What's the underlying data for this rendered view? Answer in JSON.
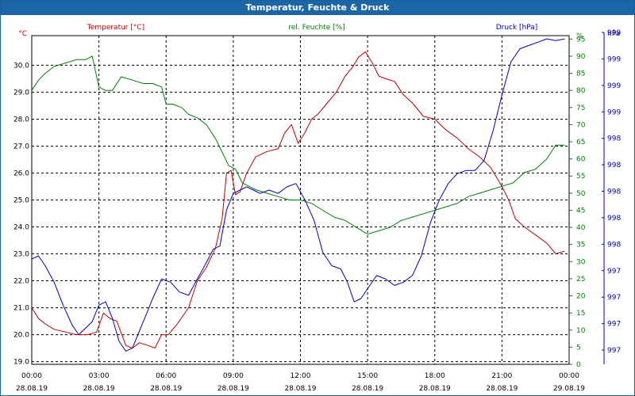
{
  "window": {
    "title": "Temperatur, Feuchte & Druck"
  },
  "colors": {
    "temperature": "#c00000",
    "humidity": "#008000",
    "pressure": "#0000c0",
    "titlebar": "#1d66a6",
    "grid": "#000000"
  },
  "chart_data": {
    "type": "line",
    "title": "Temperatur, Feuchte & Druck",
    "x_ticks": [
      {
        "hour": 0,
        "time": "00:00",
        "date": "28.08.19"
      },
      {
        "hour": 3,
        "time": "03:00",
        "date": "28.08.19"
      },
      {
        "hour": 6,
        "time": "06:00",
        "date": "28.08.19"
      },
      {
        "hour": 9,
        "time": "09:00",
        "date": "28.08.19"
      },
      {
        "hour": 12,
        "time": "12:00",
        "date": "28.08.19"
      },
      {
        "hour": 15,
        "time": "15:00",
        "date": "28.08.19"
      },
      {
        "hour": 18,
        "time": "18:00",
        "date": "28.08.19"
      },
      {
        "hour": 21,
        "time": "21:00",
        "date": "28.08.19"
      },
      {
        "hour": 24,
        "time": "00:00",
        "date": "29.08.19"
      }
    ],
    "xlim": [
      0,
      24
    ],
    "grid": true,
    "axes": {
      "temperature": {
        "unit_label": "°C",
        "label": "Temperatur [°C]",
        "ylim": [
          18.9,
          31.1
        ],
        "ticks": [
          "19.0",
          "20.0",
          "21.0",
          "22.0",
          "23.0",
          "24.0",
          "25.0",
          "26.0",
          "27.0",
          "28.0",
          "29.0",
          "30.0"
        ]
      },
      "humidity": {
        "label": "rel. Feuchte [%]",
        "ylim": [
          0,
          96
        ],
        "ticks": [
          "0",
          "5",
          "10",
          "15",
          "20",
          "25",
          "30",
          "35",
          "40",
          "45",
          "50",
          "55",
          "60",
          "65",
          "70",
          "75",
          "80",
          "85",
          "90",
          "95"
        ],
        "top_label": "%"
      },
      "pressure": {
        "unit_label": "hPa",
        "label": "Druck [hPa]",
        "ylim": [
          0,
          1
        ],
        "ticks": [
          "997",
          "997",
          "997",
          "997",
          "998",
          "998",
          "998",
          "998",
          "998",
          "999",
          "999",
          "999",
          "999"
        ]
      }
    },
    "series": [
      {
        "name": "Temperatur [°C]",
        "axis": "temperature",
        "x": [
          0,
          0.3,
          0.6,
          1.0,
          1.5,
          2.0,
          2.5,
          2.9,
          3.2,
          3.5,
          3.8,
          4.2,
          4.5,
          4.8,
          5.2,
          5.5,
          5.8,
          6.1,
          6.5,
          7.0,
          7.4,
          7.8,
          8.2,
          8.5,
          8.7,
          8.9,
          9.1,
          9.3,
          9.6,
          10.0,
          10.5,
          11.0,
          11.3,
          11.6,
          11.9,
          12.2,
          12.5,
          12.8,
          13.2,
          13.6,
          14.0,
          14.3,
          14.6,
          14.9,
          15.2,
          15.5,
          15.8,
          16.2,
          16.6,
          17.0,
          17.5,
          18.0,
          18.5,
          19.0,
          19.5,
          20.0,
          20.5,
          21.0,
          21.3,
          21.6,
          22.0,
          22.5,
          23.0,
          23.4,
          23.8
        ],
        "y": [
          21.0,
          20.6,
          20.4,
          20.2,
          20.1,
          20.0,
          20.0,
          20.1,
          20.8,
          20.6,
          20.5,
          19.6,
          19.5,
          19.7,
          19.6,
          19.5,
          20.0,
          20.0,
          20.4,
          21.0,
          22.0,
          22.5,
          23.2,
          24.3,
          26.0,
          26.1,
          25.2,
          25.3,
          26.0,
          26.6,
          26.8,
          26.9,
          27.5,
          27.8,
          27.1,
          27.5,
          28.0,
          28.2,
          28.6,
          29.0,
          29.6,
          29.9,
          30.3,
          30.5,
          30.1,
          29.6,
          29.5,
          29.4,
          28.9,
          28.6,
          28.1,
          28.0,
          27.6,
          27.3,
          26.9,
          26.6,
          26.2,
          25.5,
          25.0,
          24.3,
          24.0,
          23.7,
          23.4,
          23.0,
          23.1
        ]
      },
      {
        "name": "rel. Feuchte [%]",
        "axis": "humidity",
        "x": [
          0,
          0.3,
          0.6,
          1.0,
          1.5,
          2.0,
          2.4,
          2.7,
          3.0,
          3.3,
          3.6,
          4.0,
          4.5,
          5.0,
          5.4,
          5.8,
          6.0,
          6.3,
          6.7,
          7.0,
          7.4,
          7.8,
          8.2,
          8.5,
          8.8,
          9.1,
          9.4,
          9.7,
          10.0,
          10.5,
          11.0,
          11.5,
          12.0,
          12.5,
          13.0,
          13.5,
          14.0,
          14.5,
          15.0,
          15.5,
          16.0,
          16.5,
          17.0,
          17.5,
          18.0,
          18.5,
          19.0,
          19.5,
          20.0,
          20.5,
          21.0,
          21.5,
          22.0,
          22.5,
          23.0,
          23.4,
          23.8
        ],
        "y": [
          80,
          83,
          85,
          87,
          88,
          89,
          89,
          90,
          81,
          80,
          80,
          84,
          83,
          82,
          82,
          81,
          76,
          76,
          75,
          73,
          72,
          70,
          66,
          62,
          58,
          57,
          53,
          52,
          51,
          50,
          49,
          48,
          48,
          47,
          45,
          43,
          42,
          40,
          38,
          39,
          40,
          42,
          43,
          44,
          45,
          46,
          47,
          49,
          50,
          51,
          52,
          53,
          56,
          57,
          60,
          64,
          64
        ]
      },
      {
        "name": "Druck [hPa]",
        "axis": "pressure",
        "x": [
          0,
          0.3,
          0.6,
          1.0,
          1.4,
          1.8,
          2.1,
          2.4,
          2.7,
          3.0,
          3.3,
          3.6,
          3.9,
          4.2,
          4.5,
          4.8,
          5.1,
          5.4,
          5.8,
          6.2,
          6.6,
          7.0,
          7.4,
          7.8,
          8.1,
          8.4,
          8.7,
          9.0,
          9.3,
          9.6,
          9.9,
          10.2,
          10.6,
          11.0,
          11.4,
          11.8,
          12.2,
          12.6,
          13.0,
          13.4,
          13.8,
          14.1,
          14.4,
          14.7,
          15.0,
          15.4,
          15.8,
          16.2,
          16.6,
          17.0,
          17.4,
          17.8,
          18.2,
          18.6,
          19.0,
          19.4,
          19.8,
          20.2,
          20.6,
          21.0,
          21.4,
          21.8,
          22.2,
          22.6,
          23.0,
          23.4,
          23.8
        ],
        "y": [
          0.32,
          0.33,
          0.3,
          0.25,
          0.18,
          0.12,
          0.09,
          0.11,
          0.13,
          0.18,
          0.19,
          0.14,
          0.07,
          0.04,
          0.05,
          0.1,
          0.15,
          0.2,
          0.26,
          0.25,
          0.22,
          0.21,
          0.26,
          0.31,
          0.35,
          0.36,
          0.47,
          0.52,
          0.53,
          0.54,
          0.53,
          0.52,
          0.53,
          0.52,
          0.54,
          0.55,
          0.5,
          0.44,
          0.34,
          0.3,
          0.29,
          0.25,
          0.19,
          0.2,
          0.23,
          0.27,
          0.26,
          0.24,
          0.25,
          0.27,
          0.33,
          0.43,
          0.5,
          0.55,
          0.58,
          0.59,
          0.59,
          0.62,
          0.71,
          0.82,
          0.92,
          0.96,
          0.97,
          0.98,
          0.99,
          0.985,
          0.99
        ]
      }
    ]
  }
}
